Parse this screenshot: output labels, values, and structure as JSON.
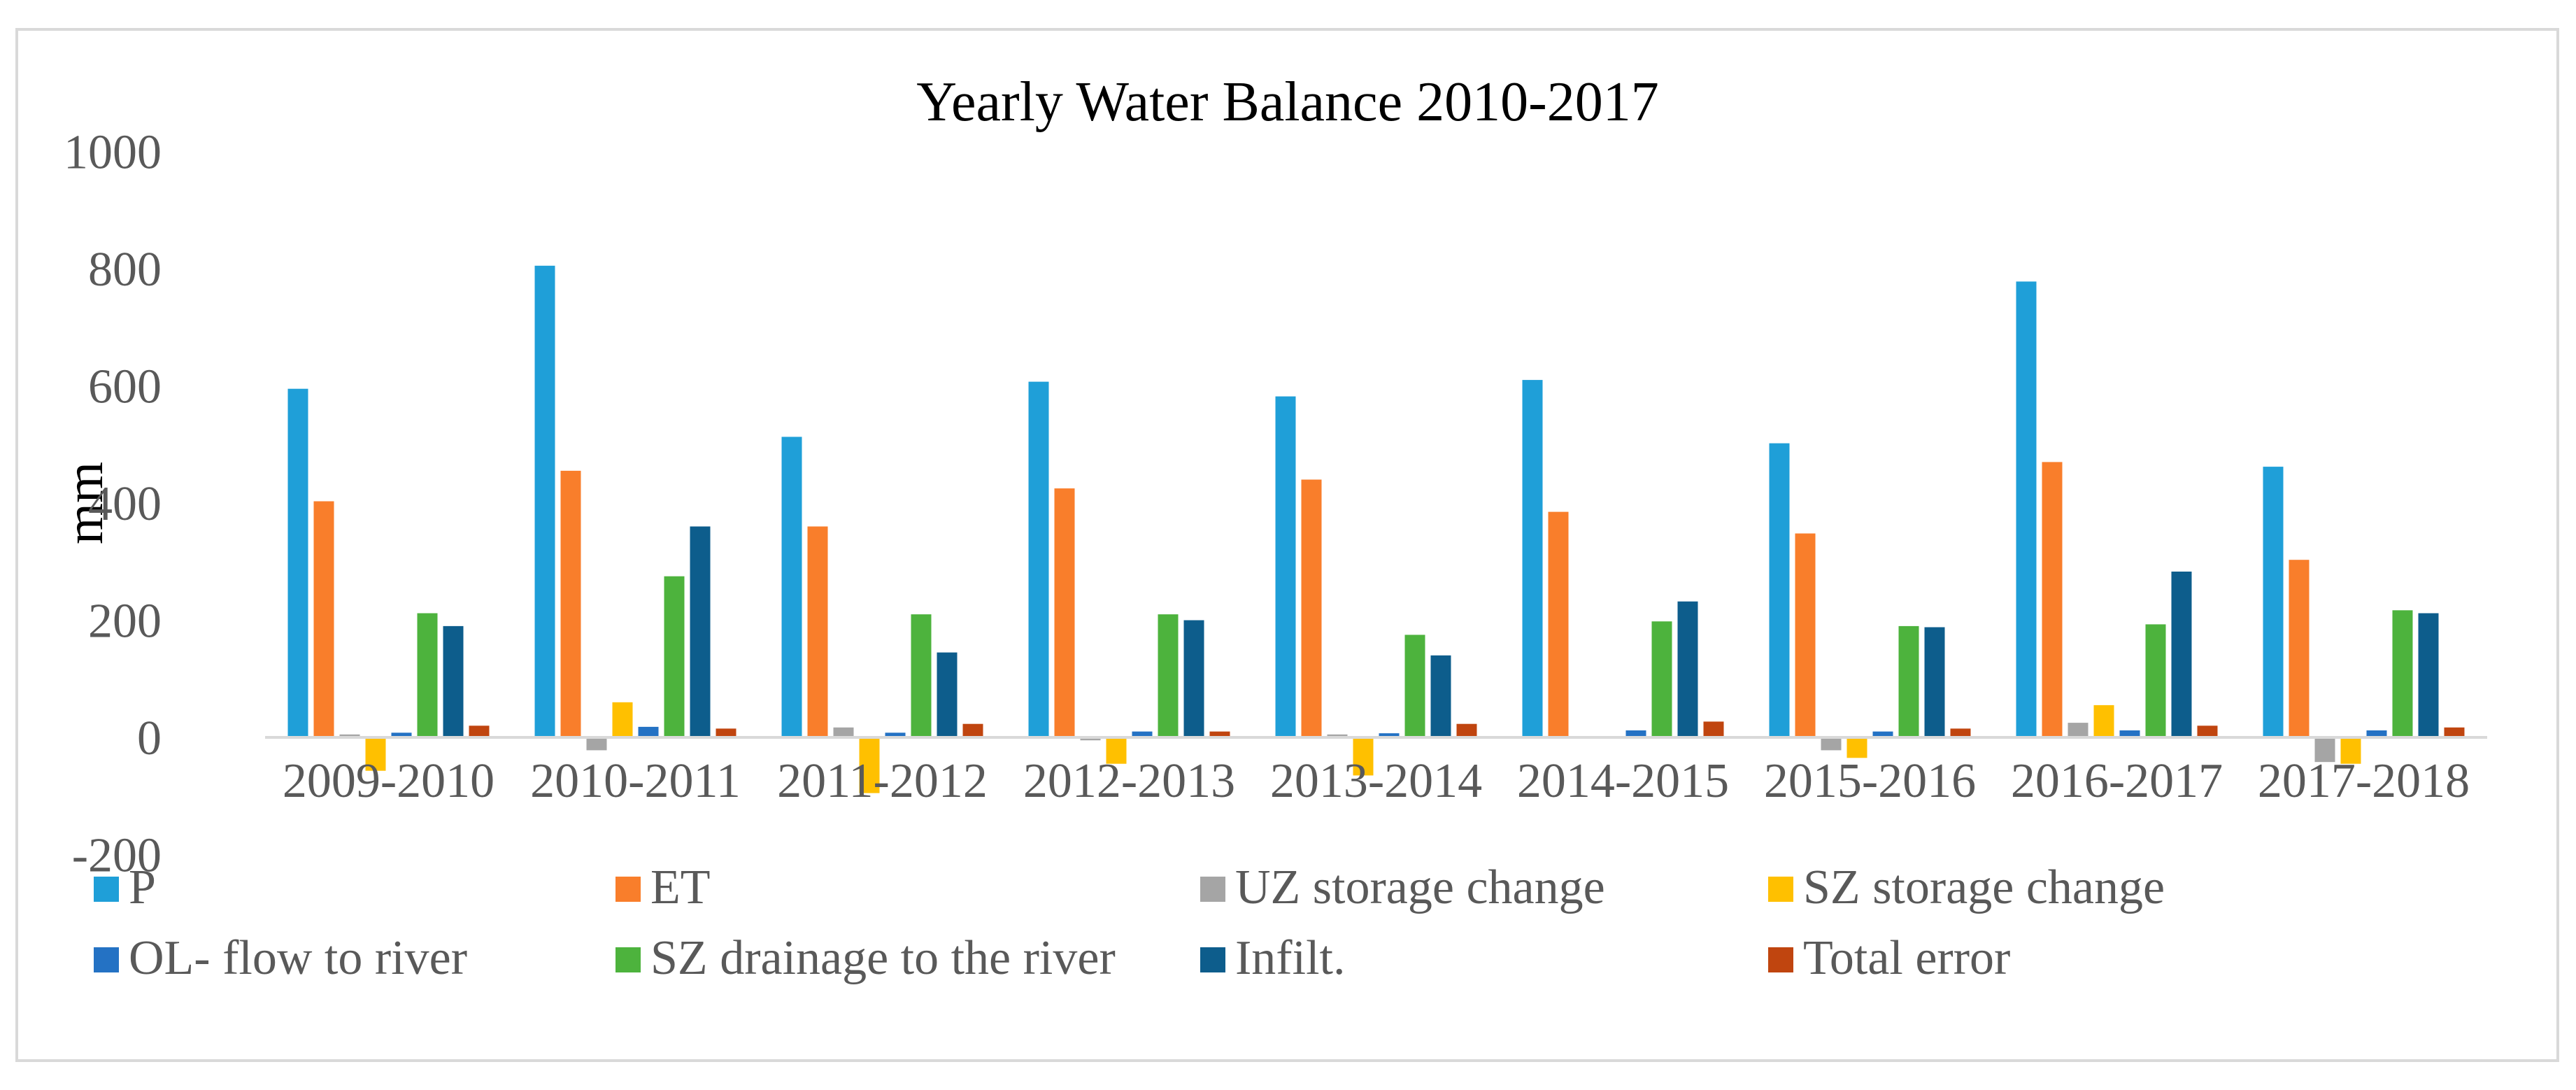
{
  "chart_data": {
    "type": "bar",
    "title": "Yearly Water Balance 2010-2017",
    "xlabel": "",
    "ylabel": "mm",
    "ylim": [
      -200,
      1000
    ],
    "yticks": [
      1000,
      800,
      600,
      400,
      200,
      0,
      -200
    ],
    "grid": false,
    "legend_position": "bottom",
    "categories": [
      "2009-2010",
      "2010-2011",
      "2011-2012",
      "2012-2013",
      "2013-2014",
      "2014-2015",
      "2015-2016",
      "2016-2017",
      "2017-2018"
    ],
    "series": [
      {
        "name": "P",
        "color": "#1f9fd8",
        "values": [
          595,
          805,
          513,
          607,
          582,
          610,
          502,
          778,
          462
        ]
      },
      {
        "name": "ET",
        "color": "#f97e2b",
        "values": [
          403,
          455,
          360,
          425,
          440,
          385,
          348,
          470,
          303
        ]
      },
      {
        "name": "UZ storage change",
        "color": "#a5a5a5",
        "values": [
          5,
          -22,
          17,
          -5,
          5,
          2,
          -22,
          25,
          -42
        ]
      },
      {
        "name": "SZ storage change",
        "color": "#ffc000",
        "values": [
          -57,
          60,
          -95,
          -45,
          -65,
          0,
          -35,
          55,
          -45
        ]
      },
      {
        "name": "OL- flow to river",
        "color": "#2472c4",
        "values": [
          8,
          18,
          8,
          10,
          7,
          12,
          10,
          12,
          12
        ]
      },
      {
        "name": "SZ drainage to the river",
        "color": "#4db33d",
        "values": [
          212,
          275,
          210,
          210,
          175,
          198,
          190,
          193,
          217
        ]
      },
      {
        "name": "Infilt.",
        "color": "#0d5d8c",
        "values": [
          190,
          360,
          145,
          200,
          140,
          232,
          188,
          283,
          212
        ]
      },
      {
        "name": "Total error",
        "color": "#c0450f",
        "values": [
          20,
          15,
          23,
          10,
          23,
          27,
          15,
          20,
          17
        ]
      }
    ]
  }
}
